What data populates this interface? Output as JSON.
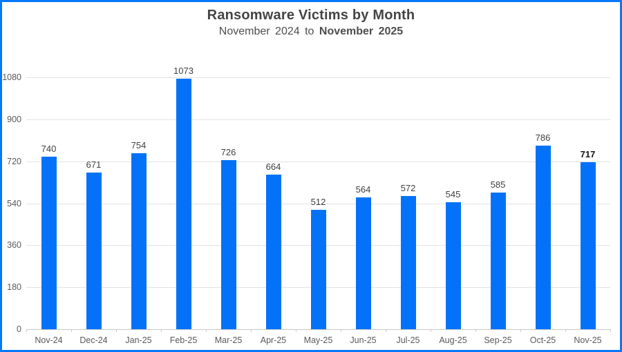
{
  "chart_data": {
    "type": "bar",
    "title": "Ransomware Victims by Month",
    "subtitle_regular": "November 2024 to",
    "subtitle_bold": "November 2025",
    "categories": [
      "Nov-24",
      "Dec-24",
      "Jan-25",
      "Feb-25",
      "Mar-25",
      "Apr-25",
      "May-25",
      "Jun-25",
      "Jul-25",
      "Aug-25",
      "Sep-25",
      "Oct-25",
      "Nov-25"
    ],
    "values": [
      740,
      671,
      754,
      1073,
      726,
      664,
      512,
      564,
      572,
      545,
      585,
      786,
      717
    ],
    "xlabel": "",
    "ylabel": "",
    "ylim": [
      0,
      1080
    ],
    "yticks": [
      0,
      180,
      360,
      540,
      720,
      900,
      1080
    ],
    "grid": true,
    "legend": false,
    "data_labels": true,
    "emphasize_last_value": true,
    "colors": {
      "bar": "#0472f8",
      "frame_border": "#0677fb",
      "gridline": "#e2e2e2",
      "axis_line": "#c8c8c8",
      "title_text": "#444444",
      "subtitle_text": "#4d4d4d",
      "axis_label_text": "#595959",
      "data_label_text": "#3f3f3f",
      "emphasized_label_text": "#111111"
    }
  }
}
